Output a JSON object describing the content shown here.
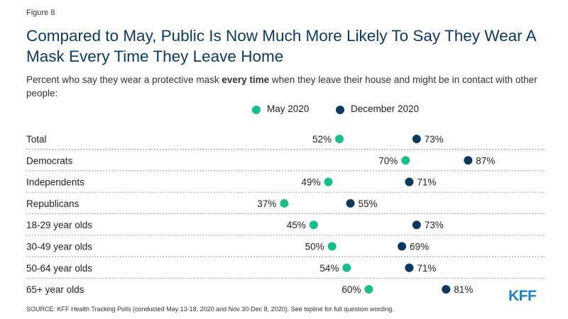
{
  "figure_label": "Figure 8",
  "title": "Compared to May, Public Is Now Much More Likely To Say They Wear A Mask Every Time They Leave Home",
  "subtitle": {
    "before": "Percent who say they wear a protective mask ",
    "bold": "every time",
    "after": " when they leave their house and might be in contact with other people:"
  },
  "source": "SOURCE: KFF Health Tracking Polls (conducted May 13-18, 2020 and Nov 30-Dec 8, 2020). See topline for full question wording.",
  "logo": "KFF",
  "colors": {
    "may": "#1abc8c",
    "december": "#0b3a5c",
    "divider": "#999999"
  },
  "chart_data": {
    "type": "scatter",
    "title": "Compared to May, Public Is Now Much More Likely To Say They Wear A Mask Every Time They Leave Home",
    "categories": [
      "Total",
      "Democrats",
      "Independents",
      "Republicans",
      "18-29 year olds",
      "30-49 year olds",
      "50-64 year olds",
      "65+ year olds"
    ],
    "series": [
      {
        "name": "May 2020",
        "values": [
          52,
          70,
          49,
          37,
          45,
          50,
          54,
          60
        ]
      },
      {
        "name": "December 2020",
        "values": [
          73,
          87,
          71,
          55,
          73,
          69,
          71,
          81
        ]
      }
    ],
    "value_suffix": "%",
    "legend": "top-center"
  }
}
